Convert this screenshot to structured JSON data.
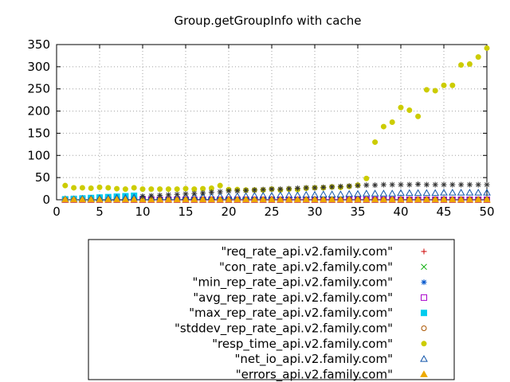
{
  "chart_data": {
    "type": "scatter",
    "title": "Group.getGroupInfo with cache",
    "xlabel": "",
    "ylabel": "",
    "xlim": [
      0,
      50
    ],
    "ylim": [
      0,
      350
    ],
    "xticks": [
      0,
      5,
      10,
      15,
      20,
      25,
      30,
      35,
      40,
      45,
      50
    ],
    "yticks": [
      0,
      50,
      100,
      150,
      200,
      250,
      300,
      350
    ],
    "grid": true,
    "legend_position": "bottom",
    "series": [
      {
        "name": "\"req_rate_api.v2.family.com\"",
        "marker": "plus",
        "color": "#cc0000",
        "x": [
          1,
          2,
          3,
          4,
          5,
          6,
          7,
          8,
          9,
          10,
          11,
          12,
          13,
          14,
          15,
          16,
          17,
          18,
          19,
          20,
          21,
          22,
          23,
          24,
          25,
          26,
          27,
          28,
          29,
          30,
          31,
          32,
          33,
          34,
          35,
          36,
          37,
          38,
          39,
          40,
          41,
          42,
          43,
          44,
          45,
          46,
          47,
          48,
          49,
          50
        ],
        "y": [
          0,
          0,
          0,
          0,
          0,
          0,
          0,
          0,
          0,
          0,
          0,
          0,
          0,
          0,
          0,
          0,
          0,
          0,
          0,
          0,
          0,
          0,
          0,
          0,
          0,
          0,
          0,
          0,
          0,
          0,
          0,
          0,
          0,
          0,
          0,
          0,
          0,
          0,
          0,
          0,
          0,
          0,
          0,
          0,
          0,
          0,
          0,
          0,
          0,
          0
        ]
      },
      {
        "name": "\"con_rate_api.v2.family.com\"",
        "marker": "cross",
        "color": "#00aa00",
        "x": [
          1,
          2,
          3,
          4,
          5,
          6,
          7,
          8,
          9,
          10,
          11,
          12,
          13,
          14,
          15,
          16,
          17,
          18,
          19,
          20,
          21,
          22,
          23,
          24,
          25,
          26,
          27,
          28,
          29,
          30,
          31,
          32,
          33,
          34,
          35,
          36,
          37,
          38,
          39,
          40,
          41,
          42,
          43,
          44,
          45,
          46,
          47,
          48,
          49,
          50
        ],
        "y": [
          0,
          0,
          0,
          0,
          0,
          0,
          0,
          0,
          0,
          0,
          0,
          0,
          0,
          0,
          0,
          0,
          0,
          0,
          0,
          0,
          0,
          0,
          0,
          0,
          0,
          0,
          0,
          0,
          0,
          0,
          0,
          0,
          0,
          0,
          0,
          0,
          0,
          0,
          0,
          0,
          0,
          0,
          0,
          0,
          0,
          0,
          0,
          0,
          0,
          0
        ]
      },
      {
        "name": "\"min_rep_rate_api.v2.family.com\"",
        "marker": "star",
        "color": "#0055cc",
        "x": [
          1,
          2,
          3,
          4,
          5,
          6,
          7,
          8,
          9,
          10,
          11,
          12,
          13,
          14,
          15,
          16,
          17,
          18,
          19,
          20,
          21,
          22,
          23,
          24,
          25,
          26,
          27,
          28,
          29,
          30,
          31,
          32,
          33,
          34,
          35,
          36,
          37,
          38,
          39,
          40,
          41,
          42,
          43,
          44,
          45,
          46,
          47,
          48,
          49,
          50
        ],
        "y": [
          0,
          0,
          0,
          0,
          0,
          0,
          0,
          0,
          0,
          0,
          0,
          0,
          0,
          0,
          0,
          0,
          0,
          0,
          0,
          0,
          0,
          0,
          0,
          0,
          0,
          0,
          0,
          0,
          0,
          0,
          0,
          0,
          0,
          0,
          0,
          0,
          0,
          0,
          0,
          0,
          0,
          0,
          0,
          0,
          0,
          0,
          0,
          0,
          0,
          0
        ]
      },
      {
        "name": "\"avg_rep_rate_api.v2.family.com\"",
        "marker": "square-open",
        "color": "#aa00cc",
        "x": [
          1,
          2,
          3,
          4,
          5,
          6,
          7,
          8,
          9,
          10,
          11,
          12,
          13,
          14,
          15,
          16,
          17,
          18,
          19,
          20,
          21,
          22,
          23,
          24,
          25,
          26,
          27,
          28,
          29,
          30,
          31,
          32,
          33,
          34,
          35,
          36,
          37,
          38,
          39,
          40,
          41,
          42,
          43,
          44,
          45,
          46,
          47,
          48,
          49,
          50
        ],
        "y": [
          0,
          0,
          0,
          0,
          0,
          0,
          0,
          0,
          0,
          0,
          0,
          0,
          0,
          0,
          0,
          0,
          0,
          0,
          0,
          0,
          0,
          0,
          0,
          0,
          0,
          0,
          0,
          0,
          0,
          0,
          0,
          0,
          0,
          0,
          0,
          0,
          0,
          0,
          0,
          0,
          0,
          0,
          0,
          0,
          0,
          0,
          0,
          0,
          0,
          0
        ]
      },
      {
        "name": "\"max_rep_rate_api.v2.family.com\"",
        "marker": "square-filled",
        "color": "#00ccee",
        "x": [
          1,
          2,
          3,
          4,
          5,
          6,
          7,
          8,
          9
        ],
        "y": [
          1,
          2,
          3,
          4,
          5,
          6,
          7,
          8,
          9
        ]
      },
      {
        "name": "\"stddev_rep_rate_api.v2.family.com\"",
        "marker": "circle-open",
        "color": "#aa5500",
        "x": [
          1,
          2,
          3,
          4,
          5,
          6,
          7,
          8,
          9,
          10,
          11,
          12,
          13,
          14,
          15,
          16,
          17,
          18,
          19,
          20,
          21,
          22,
          23,
          24,
          25,
          26,
          27,
          28,
          29,
          30,
          31,
          32,
          33,
          34,
          35,
          36,
          37,
          38,
          39,
          40,
          41,
          42,
          43,
          44,
          45,
          46,
          47,
          48,
          49,
          50
        ],
        "y": [
          0,
          0,
          0,
          0,
          0,
          0,
          0,
          0,
          0,
          0,
          0,
          0,
          0,
          0,
          0,
          0,
          0,
          0,
          0,
          0,
          0,
          0,
          0,
          0,
          0,
          0,
          0,
          0,
          0,
          0,
          0,
          0,
          0,
          0,
          0,
          0,
          0,
          0,
          0,
          0,
          0,
          0,
          0,
          0,
          0,
          0,
          0,
          0,
          0,
          0
        ]
      },
      {
        "name": "\"resp_time_api.v2.family.com\"",
        "marker": "circle-filled",
        "color": "#cccc00",
        "x": [
          1,
          2,
          3,
          4,
          5,
          6,
          7,
          8,
          9,
          10,
          11,
          12,
          13,
          14,
          15,
          16,
          17,
          18,
          19,
          20,
          21,
          22,
          23,
          24,
          25,
          26,
          27,
          28,
          29,
          30,
          31,
          32,
          33,
          34,
          35,
          36,
          37,
          38,
          39,
          40,
          41,
          42,
          43,
          44,
          45,
          46,
          47,
          48,
          49,
          50
        ],
        "y": [
          32,
          27,
          27,
          26,
          28,
          27,
          25,
          24,
          27,
          24,
          24,
          24,
          24,
          24,
          25,
          24,
          25,
          26,
          32,
          23,
          23,
          22,
          22,
          22,
          24,
          22,
          24,
          23,
          26,
          27,
          27,
          29,
          28,
          30,
          33,
          48,
          130,
          165,
          175,
          208,
          202,
          188,
          248,
          246,
          258,
          258,
          304,
          306,
          322,
          342
        ]
      },
      {
        "name": "\"net_io_api.v2.family.com\"",
        "marker": "triangle-open",
        "color": "#1155aa",
        "x": [
          1,
          2,
          3,
          4,
          5,
          6,
          7,
          8,
          9,
          10,
          11,
          12,
          13,
          14,
          15,
          16,
          17,
          18,
          19,
          20,
          21,
          22,
          23,
          24,
          25,
          26,
          27,
          28,
          29,
          30,
          31,
          32,
          33,
          34,
          35,
          36,
          37,
          38,
          39,
          40,
          41,
          42,
          43,
          44,
          45,
          46,
          47,
          48,
          49,
          50
        ],
        "y": [
          1,
          1,
          2,
          2,
          3,
          3,
          4,
          4,
          5,
          5,
          5,
          6,
          6,
          6,
          7,
          7,
          7,
          7,
          8,
          8,
          8,
          8,
          9,
          9,
          9,
          10,
          10,
          10,
          11,
          11,
          12,
          12,
          12,
          13,
          13,
          14,
          14,
          14,
          14,
          15,
          15,
          15,
          15,
          15,
          16,
          16,
          16,
          16,
          16,
          16
        ]
      },
      {
        "name": "\"errors_api.v2.family.com\"",
        "marker": "triangle-filled",
        "color": "#eeaa00",
        "x": [
          1,
          2,
          3,
          4,
          5,
          6,
          7,
          8,
          9,
          10,
          11,
          12,
          13,
          14,
          15,
          16,
          17,
          18,
          19,
          20,
          21,
          22,
          23,
          24,
          25,
          26,
          27,
          28,
          29,
          30,
          31,
          32,
          33,
          34,
          35,
          36,
          37,
          38,
          39,
          40,
          41,
          42,
          43,
          44,
          45,
          46,
          47,
          48,
          49,
          50
        ],
        "y": [
          0,
          0,
          0,
          0,
          0,
          0,
          0,
          0,
          0,
          0,
          0,
          0,
          0,
          0,
          0,
          0,
          0,
          0,
          0,
          0,
          0,
          0,
          0,
          0,
          0,
          0,
          0,
          0,
          0,
          0,
          0,
          0,
          0,
          0,
          0,
          0,
          0,
          0,
          0,
          0,
          0,
          0,
          0,
          0,
          0,
          0,
          0,
          0,
          0,
          0
        ]
      },
      {
        "name": "",
        "marker": "star",
        "color": "#333333",
        "x": [
          10,
          11,
          12,
          13,
          14,
          15,
          16,
          17,
          18,
          19,
          20,
          21,
          22,
          23,
          24,
          25,
          26,
          27,
          28,
          29,
          30,
          31,
          32,
          33,
          34,
          35,
          36,
          37,
          38,
          39,
          40,
          41,
          42,
          43,
          44,
          45,
          46,
          47,
          48,
          49,
          50
        ],
        "y": [
          8,
          9,
          10,
          11,
          12,
          13,
          14,
          15,
          17,
          18,
          20,
          20,
          21,
          22,
          23,
          24,
          24,
          25,
          26,
          27,
          27,
          28,
          29,
          30,
          31,
          32,
          33,
          33,
          34,
          34,
          34,
          34,
          35,
          34,
          34,
          34,
          34,
          34,
          34,
          34,
          34
        ]
      }
    ]
  }
}
